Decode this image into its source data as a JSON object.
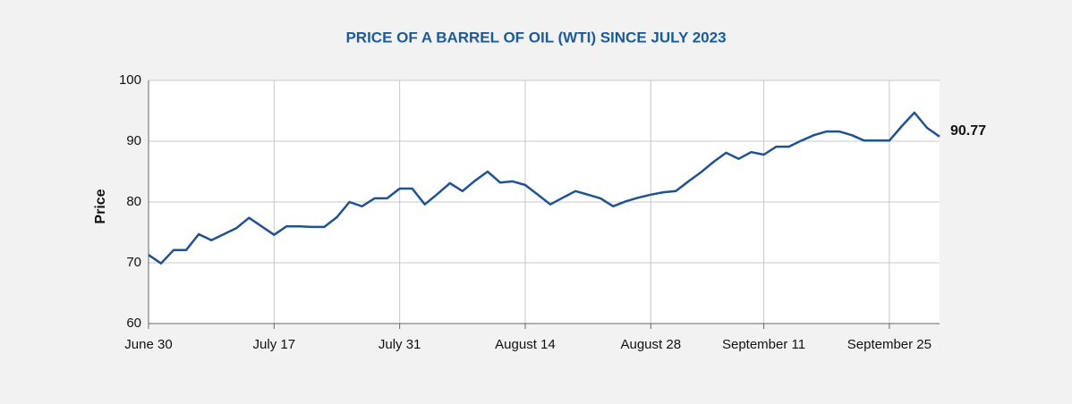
{
  "chart_data": {
    "type": "line",
    "title": "PRICE OF A BARREL OF OIL (WTI) SINCE JULY 2023",
    "y_label": "Price",
    "categories": [
      "June 30",
      null,
      null,
      null,
      null,
      null,
      null,
      null,
      null,
      null,
      "July 17",
      null,
      null,
      null,
      null,
      null,
      null,
      null,
      null,
      null,
      "July 31",
      null,
      null,
      null,
      null,
      null,
      null,
      null,
      null,
      null,
      "August 14",
      null,
      null,
      null,
      null,
      null,
      null,
      null,
      null,
      null,
      "August 28",
      null,
      null,
      null,
      null,
      null,
      null,
      null,
      null,
      "September 11",
      null,
      null,
      null,
      null,
      null,
      null,
      null,
      null,
      null,
      "September 25",
      null,
      null,
      null,
      null
    ],
    "values": [
      71.3,
      69.9,
      72.1,
      72.1,
      74.7,
      73.7,
      74.7,
      75.7,
      77.4,
      76.0,
      74.6,
      76.0,
      76.0,
      75.9,
      75.9,
      77.5,
      80.0,
      79.3,
      80.6,
      80.6,
      82.2,
      82.2,
      79.6,
      81.3,
      83.1,
      81.8,
      83.5,
      85.0,
      83.2,
      83.4,
      82.8,
      81.2,
      79.6,
      80.7,
      81.8,
      81.2,
      80.6,
      79.3,
      80.1,
      80.7,
      81.2,
      81.6,
      81.8,
      83.4,
      84.9,
      86.6,
      88.1,
      87.1,
      88.2,
      87.8,
      89.1,
      89.1,
      90.1,
      91.0,
      91.6,
      91.6,
      91.0,
      90.1,
      90.1,
      90.1,
      92.5,
      94.7,
      92.2,
      90.77
    ],
    "color": "#1f5290",
    "ylim": [
      60,
      100
    ],
    "yticks": [
      60,
      70,
      80,
      90,
      100
    ],
    "grid": true
  }
}
